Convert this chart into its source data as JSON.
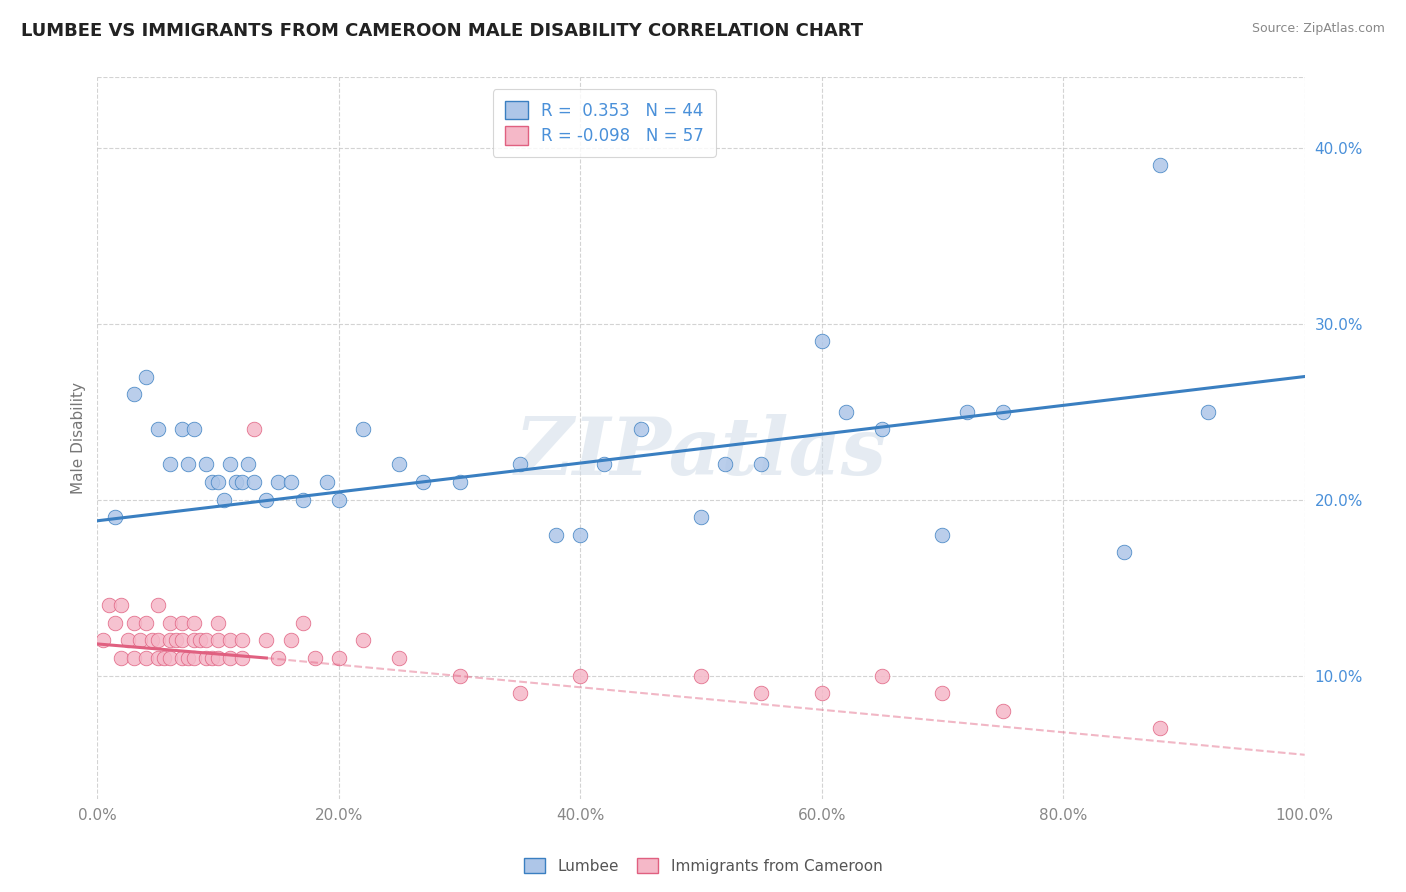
{
  "title": "LUMBEE VS IMMIGRANTS FROM CAMEROON MALE DISABILITY CORRELATION CHART",
  "source": "Source: ZipAtlas.com",
  "ylabel": "Male Disability",
  "xlim": [
    0,
    100
  ],
  "ylim": [
    3,
    44
  ],
  "ytick_positions": [
    10,
    20,
    30,
    40
  ],
  "ytick_labels": [
    "10.0%",
    "20.0%",
    "30.0%",
    "40.0%"
  ],
  "xtick_positions": [
    0,
    20,
    40,
    60,
    80,
    100
  ],
  "xtick_labels": [
    "0.0%",
    "20.0%",
    "40.0%",
    "60.0%",
    "80.0%",
    "100.0%"
  ],
  "lumbee_R": 0.353,
  "lumbee_N": 44,
  "cameroon_R": -0.098,
  "cameroon_N": 57,
  "lumbee_color": "#aec6e8",
  "cameroon_color": "#f5b8c8",
  "lumbee_line_color": "#3a7fc1",
  "cameroon_line_color": "#e06080",
  "legend_text_color": "#4a90d9",
  "watermark": "ZIPatlas",
  "background_color": "#ffffff",
  "grid_color": "#c8c8c8",
  "lumbee_x": [
    1.5,
    3,
    4,
    5,
    6,
    7,
    7.5,
    8,
    9,
    9.5,
    10,
    10.5,
    11,
    11.5,
    12,
    12.5,
    13,
    14,
    15,
    16,
    17,
    19,
    20,
    22,
    25,
    27,
    30,
    35,
    38,
    40,
    42,
    45,
    50,
    52,
    55,
    60,
    62,
    65,
    70,
    72,
    75,
    85,
    88,
    92
  ],
  "lumbee_y": [
    19,
    26,
    27,
    24,
    22,
    24,
    22,
    24,
    22,
    21,
    21,
    20,
    22,
    21,
    21,
    22,
    21,
    20,
    21,
    21,
    20,
    21,
    20,
    24,
    22,
    21,
    21,
    22,
    18,
    18,
    22,
    24,
    19,
    22,
    22,
    29,
    25,
    24,
    18,
    25,
    25,
    17,
    39,
    25
  ],
  "cameroon_x": [
    0.5,
    1,
    1.5,
    2,
    2,
    2.5,
    3,
    3,
    3.5,
    4,
    4,
    4.5,
    5,
    5,
    5,
    5.5,
    6,
    6,
    6,
    6.5,
    7,
    7,
    7,
    7.5,
    8,
    8,
    8,
    8.5,
    9,
    9,
    9.5,
    10,
    10,
    10,
    11,
    11,
    12,
    12,
    13,
    14,
    15,
    16,
    17,
    18,
    20,
    22,
    25,
    30,
    35,
    40,
    50,
    55,
    60,
    65,
    70,
    75,
    88
  ],
  "cameroon_y": [
    12,
    14,
    13,
    11,
    14,
    12,
    11,
    13,
    12,
    11,
    13,
    12,
    11,
    12,
    14,
    11,
    12,
    13,
    11,
    12,
    11,
    12,
    13,
    11,
    12,
    11,
    13,
    12,
    11,
    12,
    11,
    12,
    11,
    13,
    12,
    11,
    12,
    11,
    24,
    12,
    11,
    12,
    13,
    11,
    11,
    12,
    11,
    10,
    9,
    10,
    10,
    9,
    9,
    10,
    9,
    8,
    7
  ],
  "lumbee_line_start_x": 0,
  "lumbee_line_start_y": 18.8,
  "lumbee_line_end_x": 100,
  "lumbee_line_end_y": 27.0,
  "cameroon_line_solid_start_x": 0,
  "cameroon_line_solid_start_y": 11.8,
  "cameroon_line_solid_end_x": 14,
  "cameroon_line_solid_end_y": 11.0,
  "cameroon_line_dashed_end_x": 100,
  "cameroon_line_dashed_end_y": 5.5
}
